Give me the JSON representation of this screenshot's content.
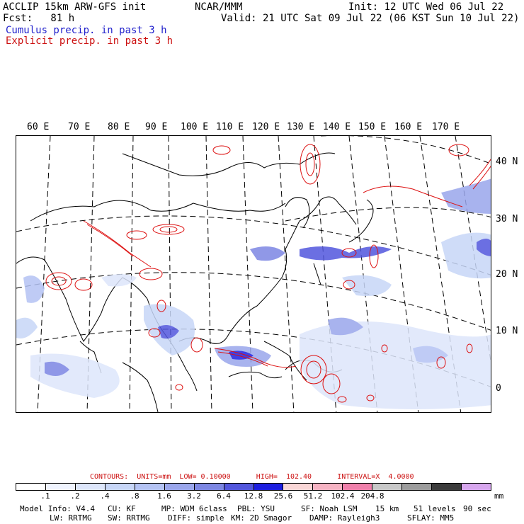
{
  "header": {
    "model": "ACCLIP 15km ARW-GFS init",
    "center": "NCAR/MMM",
    "init": "Init: 12 UTC Wed 06 Jul 22",
    "fcst": "Fcst:   81 h",
    "valid": "Valid: 21 UTC Sat 09 Jul 22 (06 KST Sun 10 Jul 22)",
    "legend_cumulus": "Cumulus precip. in past 3 h",
    "legend_explicit": "Explicit precip. in past 3 h"
  },
  "map": {
    "lon_labels": [
      "60 E",
      "70 E",
      "80 E",
      "90 E",
      "100 E",
      "110 E",
      "120 E",
      "130 E",
      "140 E",
      "150 E",
      "160 E",
      "170 E"
    ],
    "lat_labels": [
      "40 N",
      "30 N",
      "20 N",
      "10 N",
      "0"
    ]
  },
  "contours": {
    "label": "CONTOURS:  UNITS=mm  LOW= 0.10000      HIGH=  102.40      INTERVAL=X  4.0000"
  },
  "colorbar": {
    "colors": [
      "#ffffff",
      "#f0f4ff",
      "#dde6fb",
      "#c7d6f7",
      "#b4c3f4",
      "#9aa6ec",
      "#7c86e3",
      "#5256dd",
      "#1d1ee0",
      "#f9d6d6",
      "#f6b3c3",
      "#f080ab",
      "#c8c8c8",
      "#9c9c9c",
      "#3c3c3c",
      "#d7a6ee"
    ],
    "ticks": [
      ".1",
      ".2",
      ".4",
      ".8",
      "1.6",
      "3.2",
      "6.4",
      "12.8",
      "25.6",
      "51.2",
      "102.4",
      "204.8"
    ],
    "units": "mm"
  },
  "footer": {
    "line1": [
      "Model Info: V4.4",
      "CU: KF",
      "MP: WDM 6class",
      "PBL: YSU",
      "SF: Noah LSM",
      "15 km",
      "51 levels",
      "90 sec"
    ],
    "line2": [
      "LW: RRTMG",
      "SW: RRTMG",
      "DIFF: simple",
      "KM: 2D Smagor",
      "DAMP: Rayleigh3",
      "SFLAY: MM5"
    ]
  }
}
